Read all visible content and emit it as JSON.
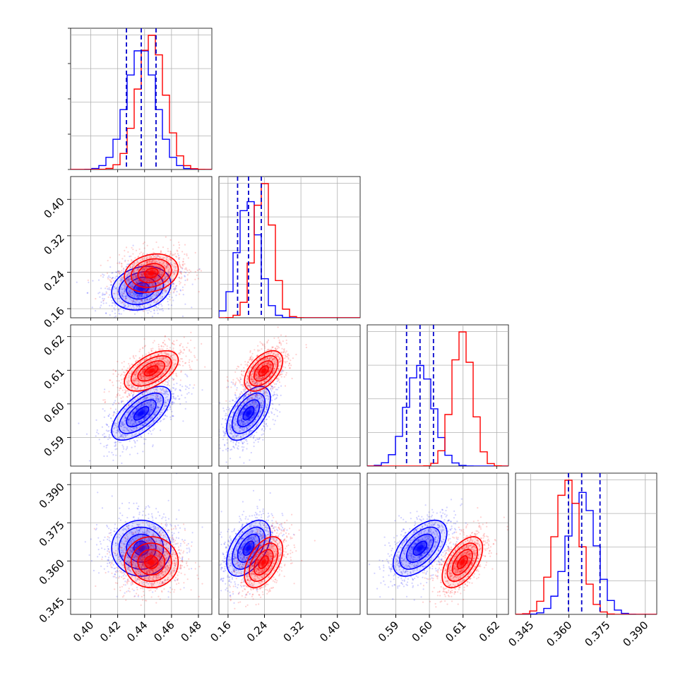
{
  "chart_data": {
    "type": "corner",
    "title": "",
    "variables": [
      {
        "range": [
          0.385,
          0.49
        ],
        "ticks": [
          0.4,
          0.42,
          0.44,
          0.46,
          0.48
        ],
        "tick_labels": [
          "0.40",
          "0.42",
          "0.44",
          "0.46",
          "0.48"
        ]
      },
      {
        "range": [
          0.14,
          0.45
        ],
        "ticks": [
          0.16,
          0.24,
          0.32,
          0.4
        ],
        "tick_labels": [
          "0.16",
          "0.24",
          "0.32",
          "0.40"
        ]
      },
      {
        "range": [
          0.5815,
          0.6235
        ],
        "ticks": [
          0.59,
          0.6,
          0.61,
          0.62
        ],
        "tick_labels": [
          "0.59",
          "0.60",
          "0.61",
          "0.62"
        ]
      },
      {
        "range": [
          0.339,
          0.3945
        ],
        "ticks": [
          0.345,
          0.36,
          0.375,
          0.39
        ],
        "tick_labels": [
          "0.345",
          "0.360",
          "0.375",
          "0.390"
        ]
      }
    ],
    "series": [
      {
        "color": "#0000ff",
        "mean": [
          0.4375,
          0.205,
          0.5972,
          0.365
        ],
        "sd": [
          0.011,
          0.024,
          0.004,
          0.0055
        ],
        "quantiles": [
          [
            0.4265,
            0.4375,
            0.4485
          ],
          [
            0.181,
            0.205,
            0.233
          ],
          [
            0.5932,
            0.5972,
            0.6012
          ],
          [
            0.3598,
            0.365,
            0.3722
          ]
        ],
        "corr": [
          [
            1,
            0.2,
            0.65,
            0.0
          ],
          [
            0.2,
            1,
            0.55,
            0.5
          ],
          [
            0.65,
            0.55,
            1,
            0.55
          ],
          [
            0.0,
            0.5,
            0.55,
            1
          ]
        ]
      },
      {
        "color": "#ff0000",
        "mean": [
          0.445,
          0.238,
          0.6098,
          0.3595
        ],
        "sd": [
          0.01,
          0.021,
          0.003,
          0.005
        ],
        "corr": [
          [
            1,
            0.2,
            0.55,
            0.0
          ],
          [
            0.2,
            1,
            0.5,
            0.5
          ],
          [
            0.55,
            0.5,
            1,
            0.55
          ],
          [
            0.0,
            0.5,
            0.55,
            1
          ]
        ]
      }
    ],
    "quantile_lines": {
      "series_index": 0,
      "style": "dashed"
    },
    "grid": true,
    "legend": "none"
  }
}
